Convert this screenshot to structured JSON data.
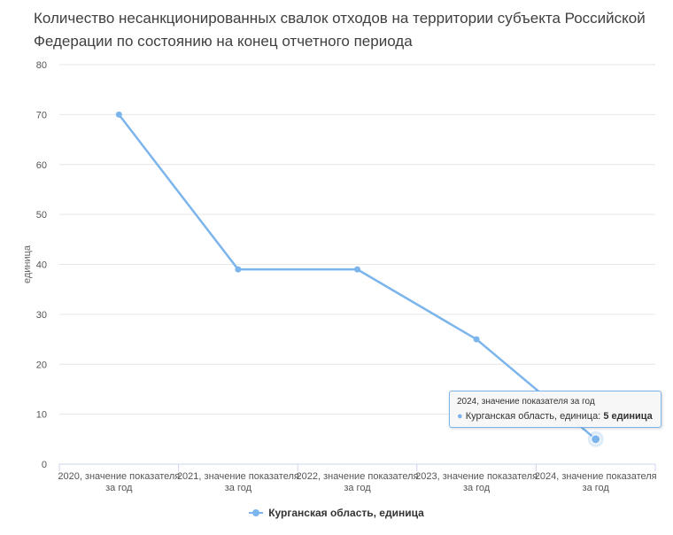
{
  "title_lines": [
    "Количество несанкционированных свалок отходов на территории субъекта Российской",
    "Федерации по состоянию на конец отчетного периода"
  ],
  "chart_data": {
    "type": "line",
    "title": "Количество несанкционированных свалок отходов на территории субъекта Российской Федерации по состоянию на конец отчетного периода",
    "categories": [
      [
        "2020, значение показателя",
        "за год"
      ],
      [
        "2021, значение показателя",
        "за год"
      ],
      [
        "2022, значение показателя",
        "за год"
      ],
      [
        "2023, значение показателя",
        "за год"
      ],
      [
        "2024, значение показателя",
        "за год"
      ]
    ],
    "series": [
      {
        "name": "Курганская область, единица",
        "values": [
          70,
          39,
          39,
          25,
          5
        ],
        "color": "#7cb5ec"
      }
    ],
    "xlabel": "",
    "ylabel": "единица",
    "ylim": [
      0,
      80
    ],
    "yticks": [
      0,
      10,
      20,
      30,
      40,
      50,
      60,
      70,
      80
    ],
    "grid": true,
    "legend": "bottom-center"
  },
  "tooltip": {
    "header": "2024, значение показателя за год",
    "series_label": "Курганская область, единица: ",
    "value_text": "5 единица"
  },
  "legend": {
    "label": "Курганская область, единица"
  }
}
